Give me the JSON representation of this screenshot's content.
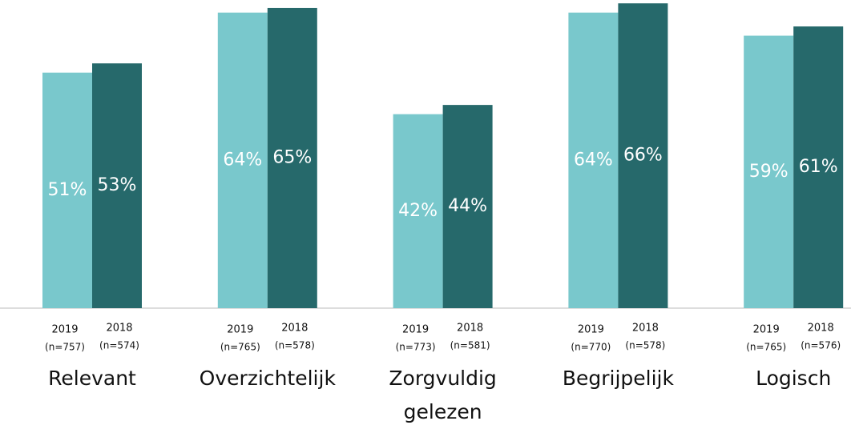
{
  "chart_data": {
    "type": "bar",
    "categories": [
      "Relevant",
      "Overzichtelijk",
      "Zorgvuldig gelezen",
      "Begrijpelijk",
      "Logisch"
    ],
    "series": [
      {
        "name": "2019",
        "color": "#79c8cc",
        "values": [
          51,
          64,
          42,
          64,
          59
        ],
        "value_labels": [
          "51%",
          "64%",
          "42%",
          "64%",
          "59%"
        ],
        "sample_labels": [
          "(n=757)",
          "(n=765)",
          "(n=773)",
          "(n=770)",
          "(n=765)"
        ]
      },
      {
        "name": "2018",
        "color": "#26696b",
        "values": [
          53,
          65,
          44,
          66,
          61
        ],
        "value_labels": [
          "53%",
          "65%",
          "44%",
          "66%",
          "61%"
        ],
        "sample_labels": [
          "(n=574)",
          "(n=578)",
          "(n=581)",
          "(n=578)",
          "(n=576)"
        ]
      }
    ]
  }
}
